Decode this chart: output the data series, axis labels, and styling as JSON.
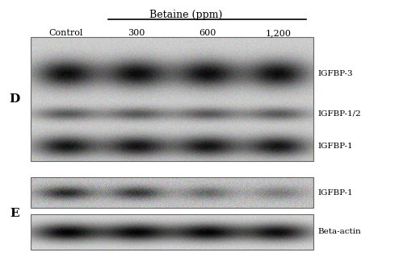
{
  "title": "Betaine (ppm)",
  "col_labels": [
    "Control",
    "300",
    "600",
    "1,200"
  ],
  "panel_d_label": "D",
  "panel_e_label": "E",
  "band_labels_d": [
    "IGFBP-3",
    "IGFBP-1/2",
    "IGFBP-1"
  ],
  "band_labels_e": [
    "IGFBP-1",
    "Beta-actin"
  ],
  "bg_color": "#ffffff",
  "figure_width": 5.2,
  "figure_height": 3.29,
  "dpi": 100
}
